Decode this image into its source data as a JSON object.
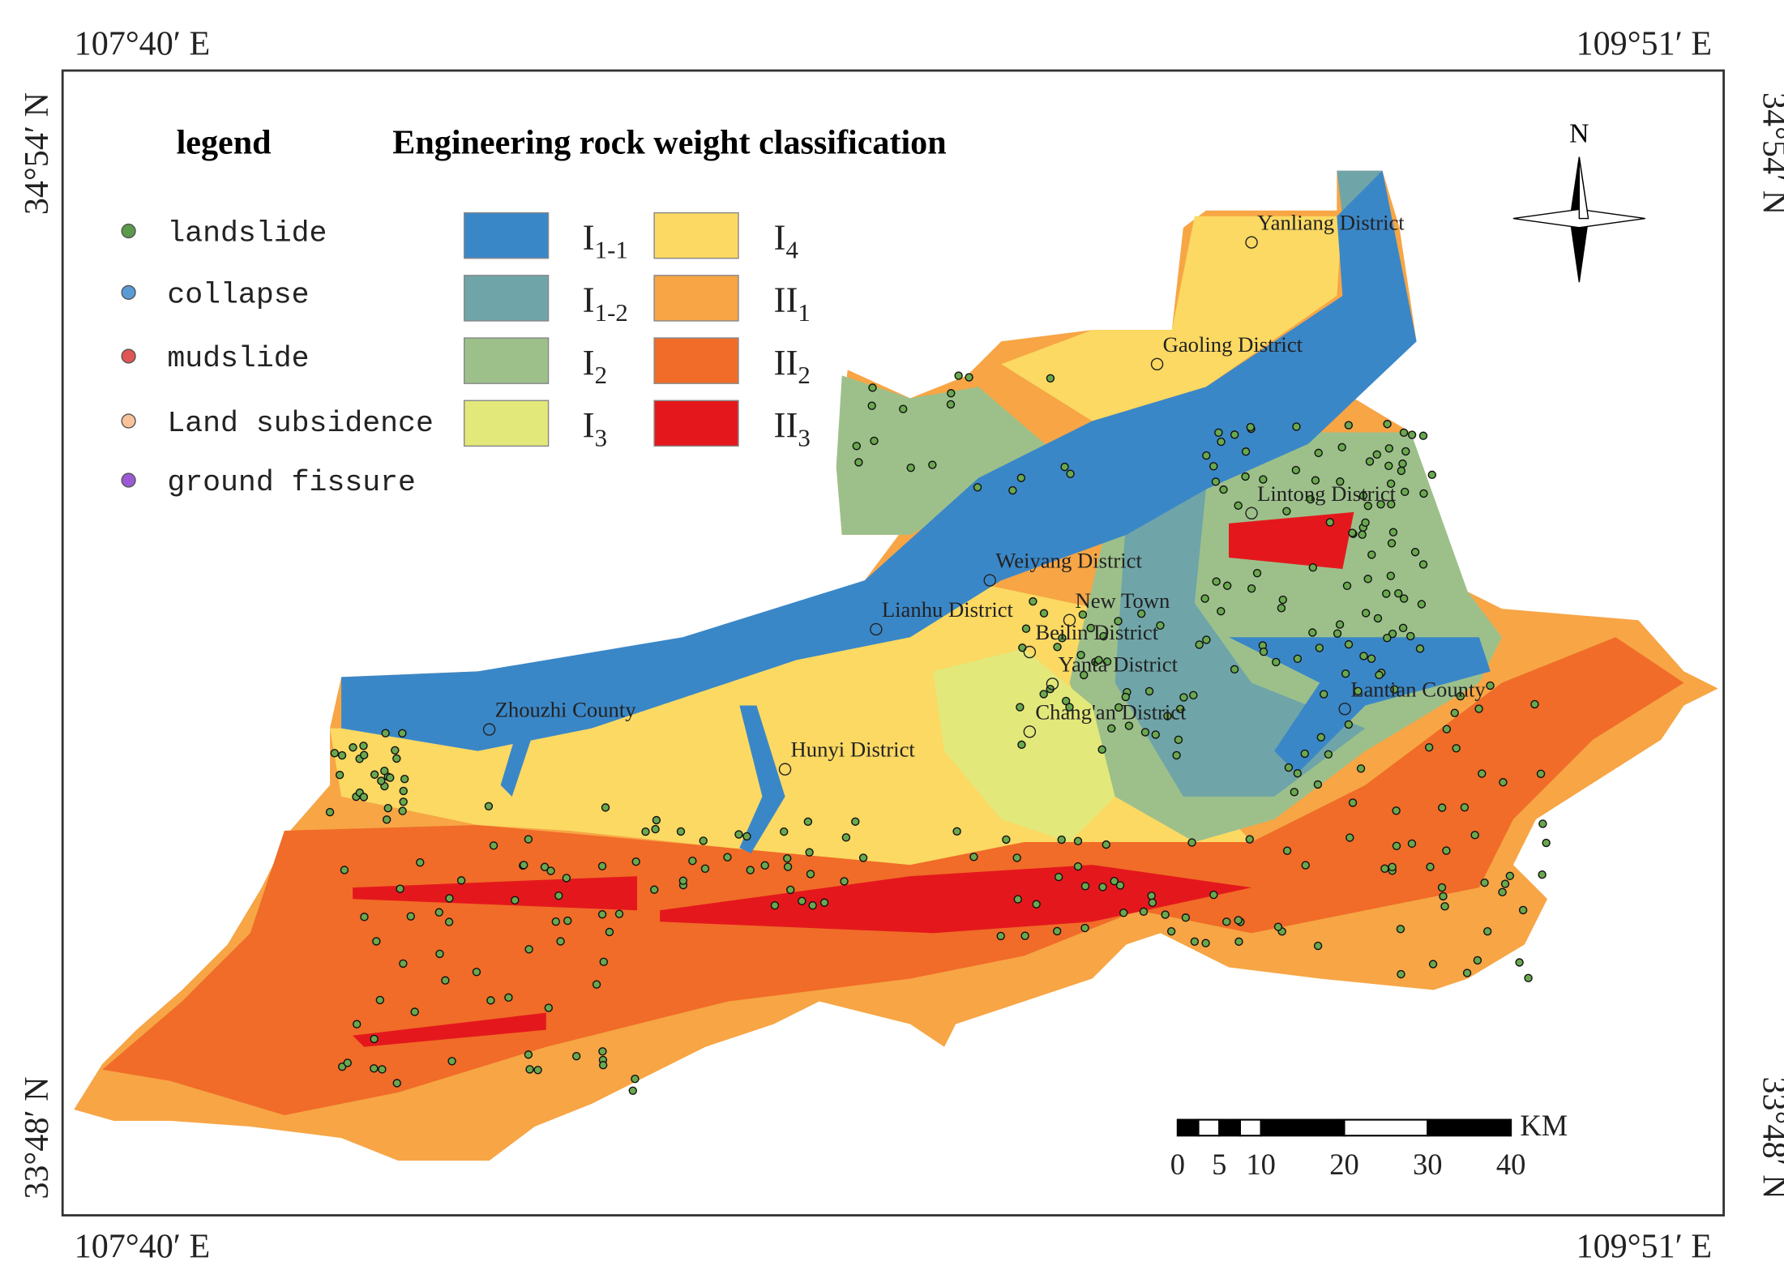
{
  "coordinates": {
    "top_left": "107°40′ E",
    "top_right": "109°51′ E",
    "bottom_left": "107°40′ E",
    "bottom_right": "109°51′ E",
    "left_top": "34°54′ N",
    "left_bottom": "33°48′ N",
    "right_top": "34°54′ N",
    "right_bottom": "33°48′ N"
  },
  "legend": {
    "title": "legend",
    "items": [
      "landslide",
      "collapse",
      "mudslide",
      "Land subsidence",
      "ground fissure"
    ]
  },
  "classification": {
    "title": "Engineering rock weight classification",
    "classes": [
      {
        "main": "I",
        "sub": "1-1"
      },
      {
        "main": "I",
        "sub": "1-2"
      },
      {
        "main": "I",
        "sub": "2"
      },
      {
        "main": "I",
        "sub": "3"
      },
      {
        "main": "I",
        "sub": "4"
      },
      {
        "main": "II",
        "sub": "1"
      },
      {
        "main": "II",
        "sub": "2"
      },
      {
        "main": "II",
        "sub": "3"
      }
    ]
  },
  "districts": [
    "Yanliang District",
    "Gaoling District",
    "Lintong District",
    "Weiyang District",
    "New Town",
    "Lianhu District",
    "Beilin District",
    "Yanta District",
    "Chang'an District",
    "Lantian County",
    "Zhouzhi County",
    "Hunyi District"
  ],
  "compass": "N",
  "scale_bar": {
    "unit": "KM",
    "ticks": [
      0,
      5,
      10,
      20,
      30,
      40
    ]
  }
}
